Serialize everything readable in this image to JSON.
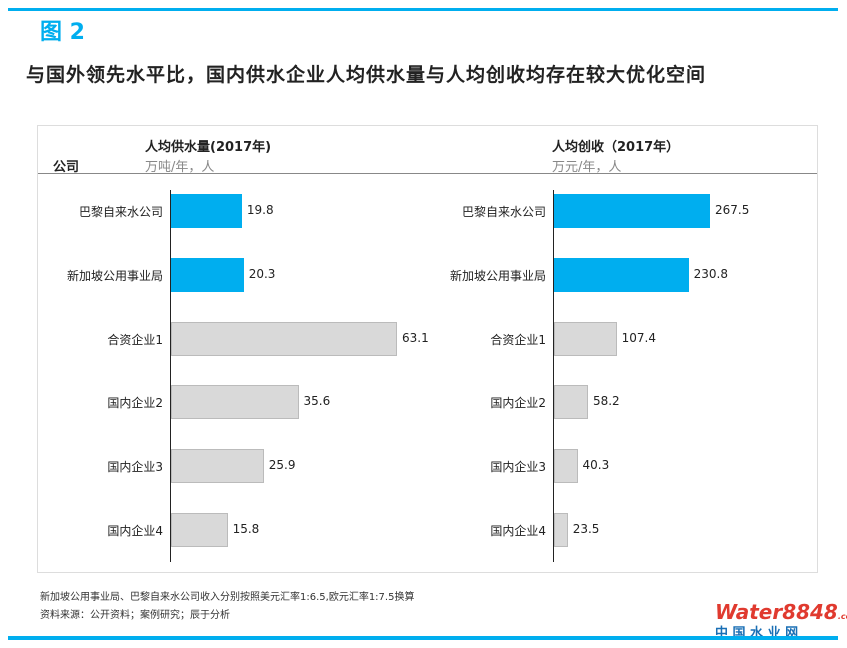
{
  "figure_label": "图 2",
  "title": "与国外领先水平比，国内供水企业人均供水量与人均创收均存在较大优化空间",
  "column_header": "公司",
  "footnotes": [
    "新加坡公用事业局、巴黎自来水公司收入分别按照美元汇率1:6.5,欧元汇率1:7.5换算",
    "资料来源：公开资料；案例研究；辰于分析"
  ],
  "logo": {
    "text": "Water8848",
    "suffix": ".com",
    "subtitle": "中 国 水 业 网"
  },
  "colors": {
    "highlight": "#00aeef",
    "normal": "#d9d9d9",
    "accent": "#00aeef"
  },
  "chart_data": [
    {
      "type": "bar",
      "orientation": "horizontal",
      "title": "人均供水量(2017年)",
      "unit": "万吨/年，人",
      "categories": [
        "巴黎自来水公司",
        "新加坡公用事业局",
        "合资企业1",
        "国内企业2",
        "国内企业3",
        "国内企业4"
      ],
      "values": [
        19.8,
        20.3,
        63.1,
        35.6,
        25.9,
        15.8
      ],
      "labels": [
        "19.8",
        "20.3",
        "63.1",
        "35.6",
        "25.9",
        "15.8"
      ],
      "highlight": [
        true,
        true,
        false,
        false,
        false,
        false
      ],
      "xlim": [
        0,
        70
      ]
    },
    {
      "type": "bar",
      "orientation": "horizontal",
      "title": "人均创收（2017年）",
      "unit": "万元/年，人",
      "categories": [
        "巴黎自来水公司",
        "新加坡公用事业局",
        "合资企业1",
        "国内企业2",
        "国内企业3",
        "国内企业4"
      ],
      "values": [
        267.5,
        230.8,
        107.4,
        58.2,
        40.3,
        23.5
      ],
      "labels": [
        "267.5",
        "230.8",
        "107.4",
        "58.2",
        "40.3",
        "23.5"
      ],
      "highlight": [
        true,
        true,
        false,
        false,
        false,
        false
      ],
      "xlim": [
        0,
        300
      ]
    }
  ]
}
